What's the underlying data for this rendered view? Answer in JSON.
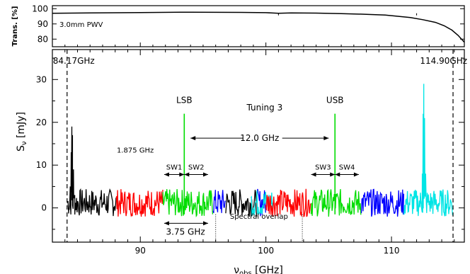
{
  "chart_data": [
    {
      "type": "line",
      "panel": "transmission",
      "ylabel": "Trans. [%]",
      "ylim": [
        75,
        102
      ],
      "yticks": [
        80,
        90,
        100
      ],
      "xlim": [
        83.0,
        115.8
      ],
      "annotation": "3.0mm PWV",
      "series": [
        {
          "color": "#000000",
          "x": [
            83.0,
            86,
            90,
            94,
            98,
            100,
            101,
            102,
            104,
            106,
            108,
            109.5,
            110.5,
            111.5,
            112.5,
            113.5,
            114.2,
            114.8,
            115.3,
            115.8
          ],
          "y": [
            97.0,
            97.2,
            97.5,
            97.7,
            97.6,
            97.4,
            97.0,
            97.2,
            97.1,
            96.8,
            96.3,
            95.8,
            95.0,
            94.2,
            92.8,
            91.0,
            88.8,
            86.0,
            82.5,
            78.0
          ]
        }
      ]
    },
    {
      "type": "line",
      "panel": "spectrum",
      "xlabel": "ν_obs [GHz]",
      "ylabel": "S_ν [mJy]",
      "title": "Tuning 3",
      "xlim": [
        83.0,
        115.8
      ],
      "ylim": [
        -8,
        37
      ],
      "xticks": [
        90,
        100,
        110
      ],
      "yticks": [
        0,
        10,
        20,
        30
      ],
      "grid": false,
      "band_edges": [
        {
          "x": 84.17,
          "label": "84.17GHz"
        },
        {
          "x": 114.9,
          "label": "114.90GHz"
        }
      ],
      "sidebands": [
        {
          "label": "LSB",
          "x": 93.5
        },
        {
          "label": "USB",
          "x": 105.5
        }
      ],
      "sideband_separation": "12.0 GHz",
      "spectral_windows": [
        {
          "label": "SW1",
          "from": 91.9,
          "to": 93.5
        },
        {
          "label": "SW2",
          "from": 93.5,
          "to": 95.4
        },
        {
          "label": "SW3",
          "from": 103.6,
          "to": 105.5
        },
        {
          "label": "SW4",
          "from": 105.5,
          "to": 107.4
        }
      ],
      "window_width_label": "1.875 GHz",
      "sideband_width_label": "3.75 GHz",
      "overlap_label": "Spectral overlap",
      "overlap_lines": [
        96.0,
        102.9
      ],
      "segments": [
        {
          "color": "#000000",
          "from": 84.2,
          "to": 88.1,
          "line": [
            [
              84.3,
              0
            ],
            [
              84.42,
              5
            ],
            [
              84.5,
              13
            ],
            [
              84.55,
              19
            ],
            [
              84.6,
              17
            ],
            [
              84.68,
              9
            ],
            [
              84.78,
              3
            ],
            [
              84.9,
              0
            ]
          ]
        },
        {
          "color": "#ff0000",
          "from": 88.1,
          "to": 91.8
        },
        {
          "color": "#00dd00",
          "from": 91.8,
          "to": 95.8
        },
        {
          "color": "#0000ff",
          "from": 95.8,
          "to": 96.8
        },
        {
          "color": "#000000",
          "from": 96.8,
          "to": 99.3
        },
        {
          "color": "#0000ff",
          "from": 99.3,
          "to": 100.0
        },
        {
          "color": "#00e5e5",
          "from": 98.8,
          "to": 100.6
        },
        {
          "color": "#ff0000",
          "from": 100.0,
          "to": 103.6
        },
        {
          "color": "#00dd00",
          "from": 103.6,
          "to": 107.6
        },
        {
          "color": "#0000ff",
          "from": 107.6,
          "to": 111.0
        },
        {
          "color": "#00e5e5",
          "from": 111.0,
          "to": 114.9,
          "line": [
            [
              112.35,
              1
            ],
            [
              112.45,
              8
            ],
            [
              112.52,
              22
            ],
            [
              112.57,
              29
            ],
            [
              112.63,
              21
            ],
            [
              112.72,
              8
            ],
            [
              112.85,
              2
            ]
          ]
        }
      ]
    }
  ]
}
